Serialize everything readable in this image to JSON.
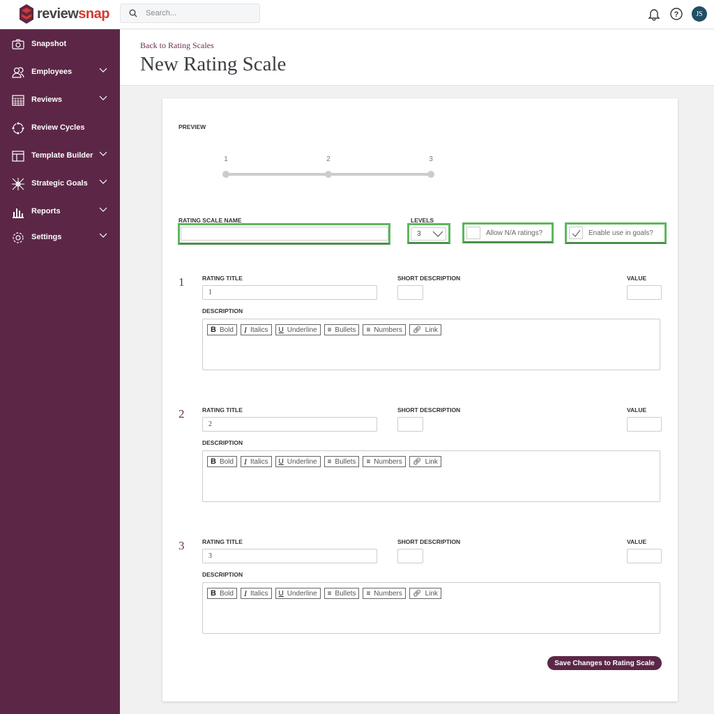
{
  "header": {
    "logo_a": "review",
    "logo_b": "snap",
    "search_placeholder": "Search...",
    "avatar": "JS"
  },
  "sidebar": {
    "items": [
      {
        "label": "Snapshot",
        "icon": "camera-icon",
        "chevron": false
      },
      {
        "label": "Employees",
        "icon": "users-icon",
        "chevron": true
      },
      {
        "label": "Reviews",
        "icon": "calendar-icon",
        "chevron": true
      },
      {
        "label": "Review Cycles",
        "icon": "cycle-icon",
        "chevron": false
      },
      {
        "label": "Template Builder",
        "icon": "template-icon",
        "chevron": true
      },
      {
        "label": "Strategic Goals",
        "icon": "goals-icon",
        "chevron": true
      },
      {
        "label": "Reports",
        "icon": "chart-icon",
        "chevron": true
      },
      {
        "label": "Settings",
        "icon": "gear-icon",
        "chevron": true
      }
    ]
  },
  "page": {
    "back_link": "Back to Rating Scales",
    "title": "New Rating Scale"
  },
  "form": {
    "preview_label": "PREVIEW",
    "preview_points": [
      "1",
      "2",
      "3"
    ],
    "name_label": "RATING SCALE NAME",
    "name_value": "",
    "levels_label": "LEVELS",
    "levels_value": "3",
    "allow_na_label": "Allow N/A ratings?",
    "allow_na_checked": false,
    "goals_label": "Enable use in goals?",
    "goals_checked": true,
    "highlight_color": "#5cb85c",
    "rating_title_label": "RATING TITLE",
    "short_desc_label": "SHORT DESCRIPTION",
    "value_label": "VALUE",
    "description_label": "DESCRIPTION",
    "toolbar": [
      "Bold",
      "Italics",
      "Underline",
      "Bullets",
      "Numbers",
      "Link"
    ],
    "ratings": [
      {
        "number": "1",
        "title": "1",
        "short_description": "",
        "value": "",
        "description": ""
      },
      {
        "number": "2",
        "title": "2",
        "short_description": "",
        "value": "",
        "description": ""
      },
      {
        "number": "3",
        "title": "3",
        "short_description": "",
        "value": "",
        "description": ""
      }
    ],
    "save_label": "Save Changes to Rating Scale"
  }
}
